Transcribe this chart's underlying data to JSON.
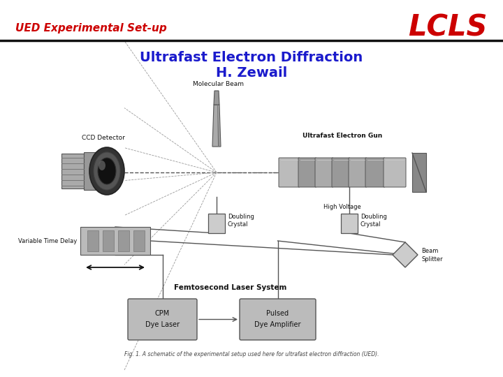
{
  "title_left": "UED Experimental Set-up",
  "title_right": "LCLS",
  "subtitle_line1": "Ultrafast Electron Diffraction",
  "subtitle_line2": "H. Zewail",
  "title_left_color": "#cc0000",
  "title_right_color": "#cc0000",
  "subtitle_color": "#1a1acc",
  "bg_color": "#ffffff",
  "divider_color": "#111111",
  "fig_caption": "Fig. 1. A schematic of the experimental setup used here for ultrafast electron diffraction (UED).",
  "label_color": "#111111",
  "diagram_bg": "#f0f0f0"
}
